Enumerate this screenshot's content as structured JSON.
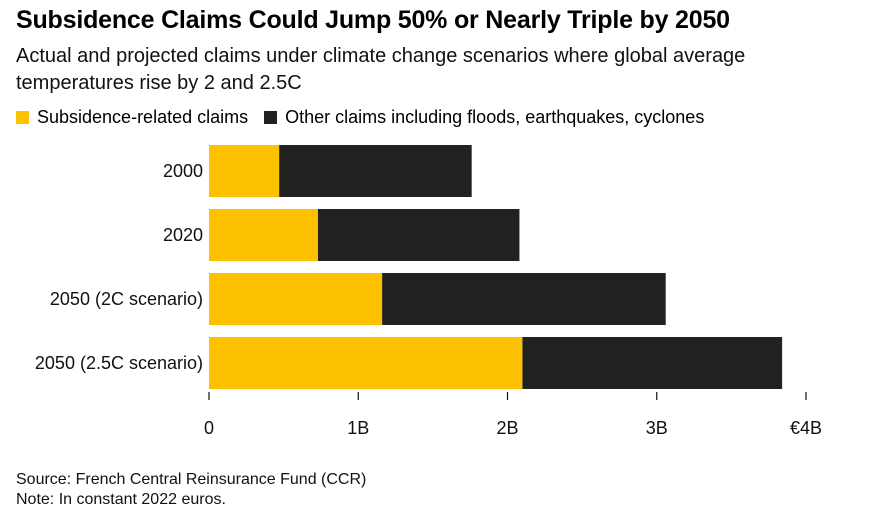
{
  "title": "Subsidence Claims Could Jump 50% or Nearly Triple by 2050",
  "subtitle": "Actual and projected claims under climate change scenarios where global average temperatures rise by 2 and 2.5C",
  "footer": {
    "source": "Source: French Central Reinsurance Fund (CCR)",
    "note": "Note: In constant 2022 euros."
  },
  "chart_data": {
    "type": "bar",
    "orientation": "horizontal",
    "stacked": true,
    "categories": [
      "2000",
      "2020",
      "2050 (2C scenario)",
      "2050 (2.5C scenario)"
    ],
    "series": [
      {
        "name": "Subsidence-related claims",
        "color": "#fcc200",
        "values": [
          0.47,
          0.73,
          1.16,
          2.1
        ]
      },
      {
        "name": "Other claims including floods, earthquakes, cyclones",
        "color": "#222222",
        "values": [
          1.29,
          1.35,
          1.9,
          1.74
        ]
      }
    ],
    "xlim": [
      0,
      4
    ],
    "xticks": [
      0,
      1,
      2,
      3,
      4
    ],
    "xtick_labels": [
      "0",
      "1B",
      "2B",
      "3B",
      "€4B"
    ],
    "unit": "euros (billions)",
    "grid": false,
    "legend_position": "top-left"
  }
}
